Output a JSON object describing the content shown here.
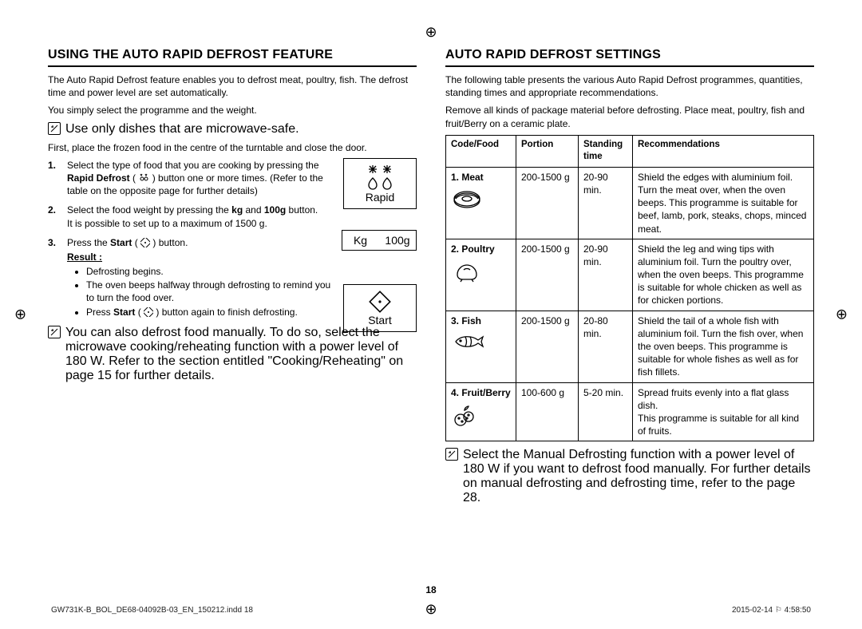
{
  "left": {
    "heading": "USING THE AUTO RAPID DEFROST FEATURE",
    "intro1": "The Auto Rapid Defrost feature enables you to defrost meat, poultry, fish. The defrost time and power level are set automatically.",
    "intro2": "You simply select the programme and the weight.",
    "note1": "Use only dishes that are microwave-safe.",
    "intro3": "First, place the frozen food in the centre of the turntable and close the door.",
    "step1_a": "Select the type of food that you are cooking by pressing the ",
    "step1_b": "Rapid Defrost",
    "step1_c": " ( ",
    "step1_d": " ) button one or more times. (Refer to the table on the opposite page for further details)",
    "step2_a": "Select the food weight by pressing the ",
    "step2_b": "kg",
    "step2_c": " and ",
    "step2_d": "100g",
    "step2_e": " button.",
    "step2_f": "It is possible to set up to a maximum of 1500 g.",
    "step3_a": "Press the ",
    "step3_b": "Start",
    "step3_c": " ( ",
    "step3_d": " ) button.",
    "result_label": "Result :",
    "bullet1": "Defrosting begins.",
    "bullet2": "The oven beeps halfway through defrosting to remind you to turn the food over.",
    "bullet3_a": "Press ",
    "bullet3_b": "Start",
    "bullet3_c": " ( ",
    "bullet3_d": " ) button again to finish defrosting.",
    "note2": "You can also defrost food manually. To do so, select the microwave cooking/reheating function with a power level of 180 W. Refer to the section entitled \"Cooking/Reheating\" on page 15 for further details.",
    "rapid_label": "Rapid",
    "kg_label": "Kg",
    "g100_label": "100g",
    "start_label": "Start"
  },
  "right": {
    "heading": "AUTO RAPID DEFROST SETTINGS",
    "intro1": "The following table presents the various Auto Rapid Defrost programmes, quantities, standing times and appropriate recommendations.",
    "intro2": "Remove all kinds of package material before defrosting. Place meat, poultry, fish and fruit/Berry on a ceramic plate.",
    "th1": "Code/Food",
    "th2": "Portion",
    "th3": "Standing time",
    "th4": "Recommendations",
    "rows": [
      {
        "name": "1. Meat",
        "portion": "200-1500 g",
        "standing": "20-90 min.",
        "rec": "Shield the edges with aluminium foil. Turn the meat over, when the oven beeps. This programme is suitable for beef, lamb, pork, steaks, chops, minced meat.",
        "icon": "meat"
      },
      {
        "name": "2. Poultry",
        "portion": "200-1500 g",
        "standing": "20-90 min.",
        "rec": "Shield the leg and wing tips with aluminium foil. Turn the poultry over, when the oven beeps. This programme is suitable for whole chicken as well as for chicken portions.",
        "icon": "poultry"
      },
      {
        "name": "3. Fish",
        "portion": "200-1500 g",
        "standing": "20-80 min.",
        "rec": "Shield the tail of a whole fish with aluminium foil. Turn the fish over, when the oven beeps. This programme is suitable for whole fishes as well as for fish fillets.",
        "icon": "fish"
      },
      {
        "name": "4. Fruit/Berry",
        "portion": "100-600 g",
        "standing": "5-20 min.",
        "rec": "Spread fruits evenly into a flat glass dish.\nThis programme is suitable for all kind of fruits.",
        "icon": "berry"
      }
    ],
    "note3": "Select the Manual Defrosting function with a power level of 180 W if you want to defrost food manually. For further details on manual defrosting and defrosting time, refer to the page 28."
  },
  "page_number": "18",
  "footer_left": "GW731K-B_BOL_DE68-04092B-03_EN_150212.indd   18",
  "footer_right": "2015-02-14   ⚐ 4:58:50",
  "icons": {
    "reg_mark": "⌖"
  }
}
